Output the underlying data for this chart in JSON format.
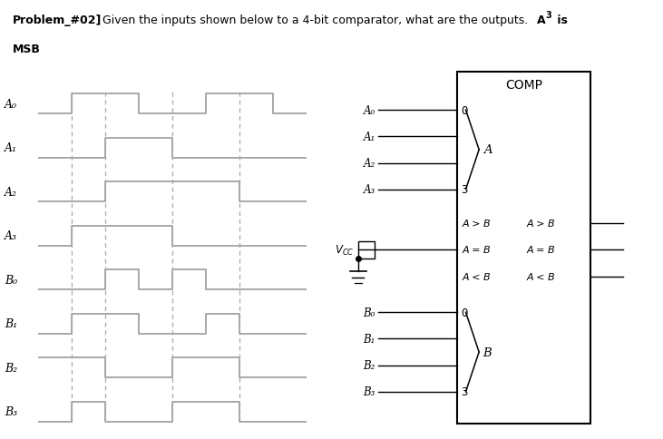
{
  "bg_color": "#ffffff",
  "wf_color": "#999999",
  "dash_color": "#aaaaaa",
  "signal_labels": [
    "A₀",
    "A₁",
    "A₂",
    "A₃",
    "B₀",
    "B₁",
    "B₂",
    "B₃"
  ],
  "waveforms": {
    "A0": [
      0,
      1,
      1,
      0,
      0,
      1,
      1,
      0
    ],
    "A1": [
      0,
      0,
      1,
      1,
      0,
      0,
      0,
      0
    ],
    "A2": [
      0,
      0,
      1,
      1,
      1,
      1,
      0,
      0
    ],
    "A3": [
      0,
      1,
      1,
      1,
      0,
      0,
      0,
      0
    ],
    "B0": [
      0,
      0,
      1,
      0,
      1,
      0,
      0,
      0
    ],
    "B1": [
      0,
      1,
      1,
      0,
      0,
      1,
      0,
      0
    ],
    "B2": [
      1,
      1,
      0,
      0,
      1,
      1,
      0,
      0
    ],
    "B3": [
      0,
      1,
      0,
      0,
      1,
      1,
      0,
      0
    ]
  },
  "n_steps": 8,
  "dashed_t": [
    1,
    2,
    4,
    6
  ],
  "comp_title": "COMP"
}
